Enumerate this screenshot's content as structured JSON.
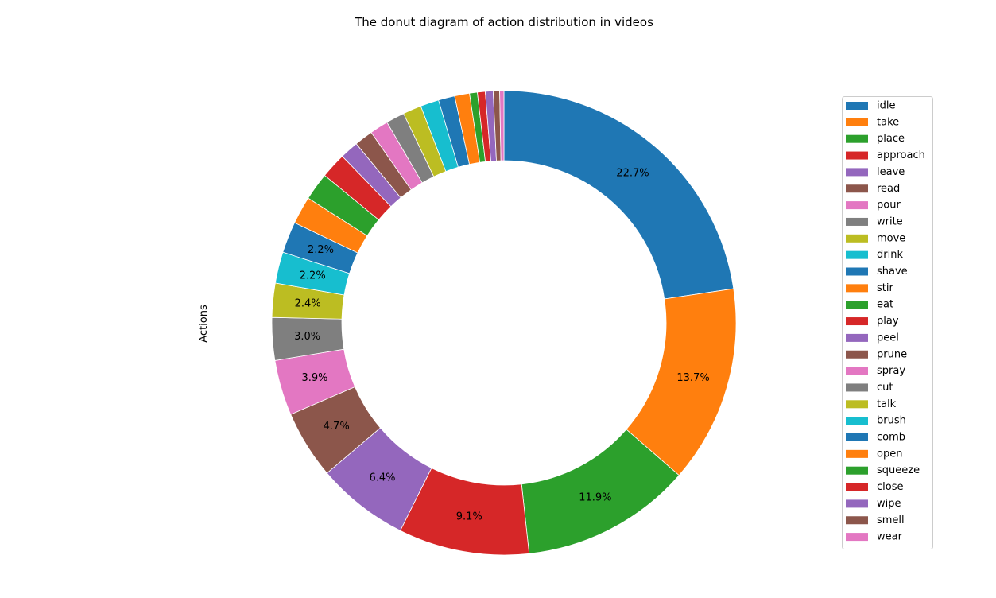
{
  "chart_data": {
    "type": "pie",
    "variant": "donut",
    "title": "The donut diagram of action distribution in videos",
    "ylabel": "Actions",
    "legend_position": "right",
    "start_angle_deg": 90,
    "direction": "clockwise",
    "label_threshold_pct": 2,
    "slices": [
      {
        "label": "idle",
        "value": 22.9,
        "color": "#1f77b4"
      },
      {
        "label": "take",
        "value": 13.9,
        "color": "#ff7f0e"
      },
      {
        "label": "place",
        "value": 12.0,
        "color": "#2ca02c"
      },
      {
        "label": "approach",
        "value": 9.2,
        "color": "#d62728"
      },
      {
        "label": "leave",
        "value": 6.5,
        "color": "#9467bd"
      },
      {
        "label": "read",
        "value": 4.8,
        "color": "#8c564b"
      },
      {
        "label": "pour",
        "value": 3.9,
        "color": "#e377c2"
      },
      {
        "label": "write",
        "value": 3.0,
        "color": "#7f7f7f"
      },
      {
        "label": "move",
        "value": 2.4,
        "color": "#bcbd22"
      },
      {
        "label": "drink",
        "value": 2.2,
        "color": "#17becf"
      },
      {
        "label": "shave",
        "value": 2.2,
        "color": "#1f77b4"
      },
      {
        "label": "stir",
        "value": 1.95,
        "color": "#ff7f0e"
      },
      {
        "label": "eat",
        "value": 1.95,
        "color": "#2ca02c"
      },
      {
        "label": "play",
        "value": 1.8,
        "color": "#d62728"
      },
      {
        "label": "peel",
        "value": 1.3,
        "color": "#9467bd"
      },
      {
        "label": "prune",
        "value": 1.3,
        "color": "#8c564b"
      },
      {
        "label": "spray",
        "value": 1.3,
        "color": "#e377c2"
      },
      {
        "label": "cut",
        "value": 1.3,
        "color": "#7f7f7f"
      },
      {
        "label": "talk",
        "value": 1.3,
        "color": "#bcbd22"
      },
      {
        "label": "brush",
        "value": 1.3,
        "color": "#17becf"
      },
      {
        "label": "comb",
        "value": 1.15,
        "color": "#1f77b4"
      },
      {
        "label": "open",
        "value": 1.05,
        "color": "#ff7f0e"
      },
      {
        "label": "squeeze",
        "value": 0.55,
        "color": "#2ca02c"
      },
      {
        "label": "close",
        "value": 0.55,
        "color": "#d62728"
      },
      {
        "label": "wipe",
        "value": 0.55,
        "color": "#9467bd"
      },
      {
        "label": "smell",
        "value": 0.45,
        "color": "#8c564b"
      },
      {
        "label": "wear",
        "value": 0.3,
        "color": "#e377c2"
      }
    ]
  }
}
